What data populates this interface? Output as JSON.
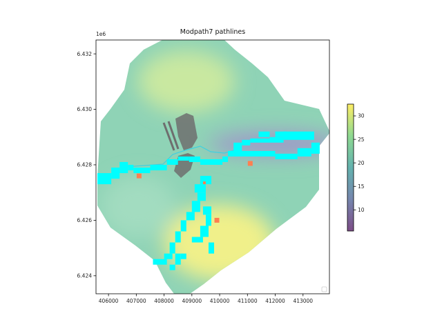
{
  "chart_data": {
    "type": "heatmap",
    "title": "Modpath7 pathlines",
    "y_offset_label": "1e6",
    "xlabel": "",
    "ylabel": "",
    "xlim": [
      405550,
      413950
    ],
    "ylim": [
      6423350,
      6432500
    ],
    "x_ticks": [
      406000,
      407000,
      408000,
      409000,
      410000,
      411000,
      412000,
      413000
    ],
    "x_tick_labels": [
      "406000",
      "407000",
      "408000",
      "409000",
      "410000",
      "411000",
      "412000",
      "413000"
    ],
    "y_ticks": [
      6424000,
      6426000,
      6428000,
      6430000,
      6432000
    ],
    "y_tick_labels": [
      "6.424",
      "6.426",
      "6.428",
      "6.430",
      "6.432"
    ],
    "colorbar": {
      "colormap": "viridis",
      "alpha": 0.5,
      "range": [
        5.5,
        32.5
      ],
      "ticks": [
        10,
        15,
        20,
        25,
        30
      ],
      "tick_labels": [
        "10",
        "15",
        "20",
        "25",
        "30"
      ]
    },
    "series": [
      {
        "kind": "head-field",
        "high_head_zones": [
          {
            "x": 410000,
            "y": 6425200,
            "value": 31
          },
          {
            "x": 408800,
            "y": 6431000,
            "value": 27
          }
        ],
        "low_head_zone": {
          "x": 412000,
          "y": 6428750,
          "value": 7
        }
      },
      {
        "kind": "pathline-cells",
        "color": "#00ffff",
        "cells": [
          [
            405600,
            6427300,
            406100,
            6427700
          ],
          [
            406100,
            6427500,
            406400,
            6427900
          ],
          [
            406400,
            6427700,
            406700,
            6428100
          ],
          [
            406700,
            6427800,
            406900,
            6428000
          ],
          [
            406900,
            6427700,
            407500,
            6427900
          ],
          [
            407500,
            6427800,
            408100,
            6428000
          ],
          [
            408100,
            6428000,
            408500,
            6428200
          ],
          [
            408500,
            6428150,
            408900,
            6428300
          ],
          [
            408900,
            6428100,
            409300,
            6428300
          ],
          [
            409300,
            6428000,
            409700,
            6428200
          ],
          [
            409700,
            6428000,
            410100,
            6428200
          ],
          [
            410100,
            6428100,
            410300,
            6428300
          ],
          [
            410300,
            6428300,
            410500,
            6428500
          ],
          [
            410500,
            6428400,
            410800,
            6428800
          ],
          [
            410800,
            6428700,
            411100,
            6428900
          ],
          [
            411100,
            6428800,
            411800,
            6428950
          ],
          [
            411800,
            6428800,
            412300,
            6429000
          ],
          [
            412300,
            6428900,
            413400,
            6429200
          ],
          [
            410500,
            6428300,
            411500,
            6428500
          ],
          [
            411500,
            6428300,
            412000,
            6428500
          ],
          [
            412000,
            6428200,
            412800,
            6428400
          ],
          [
            412800,
            6428300,
            413300,
            6428600
          ],
          [
            413300,
            6428400,
            413600,
            6428800
          ],
          [
            411400,
            6429000,
            411800,
            6429200
          ],
          [
            412000,
            6429000,
            412400,
            6429200
          ],
          [
            409300,
            6427300,
            409700,
            6427600
          ],
          [
            409100,
            6427000,
            409500,
            6427300
          ],
          [
            409200,
            6426700,
            409500,
            6427000
          ],
          [
            409000,
            6426300,
            409300,
            6426700
          ],
          [
            408800,
            6426000,
            409100,
            6426300
          ],
          [
            408600,
            6425600,
            408800,
            6426000
          ],
          [
            408400,
            6425200,
            408600,
            6425600
          ],
          [
            408200,
            6424800,
            408400,
            6425200
          ],
          [
            408000,
            6424600,
            408300,
            6424800
          ],
          [
            407600,
            6424400,
            408100,
            6424600
          ],
          [
            408400,
            6424400,
            408600,
            6424800
          ],
          [
            408600,
            6424600,
            408800,
            6424800
          ],
          [
            409000,
            6425200,
            409400,
            6425400
          ],
          [
            409300,
            6425400,
            409600,
            6425800
          ],
          [
            409500,
            6425800,
            409700,
            6426200
          ],
          [
            409400,
            6426200,
            409700,
            6426500
          ],
          [
            409600,
            6424800,
            409800,
            6425200
          ],
          [
            408200,
            6424200,
            408400,
            6424400
          ]
        ]
      },
      {
        "kind": "wells",
        "color": "#ff7f50",
        "points": [
          [
            407100,
            6427600
          ],
          [
            409900,
            6426000
          ],
          [
            411100,
            6428050
          ],
          [
            409450,
            6427350
          ]
        ]
      }
    ],
    "grid": false,
    "legend": "lower right",
    "legend_entries": []
  }
}
